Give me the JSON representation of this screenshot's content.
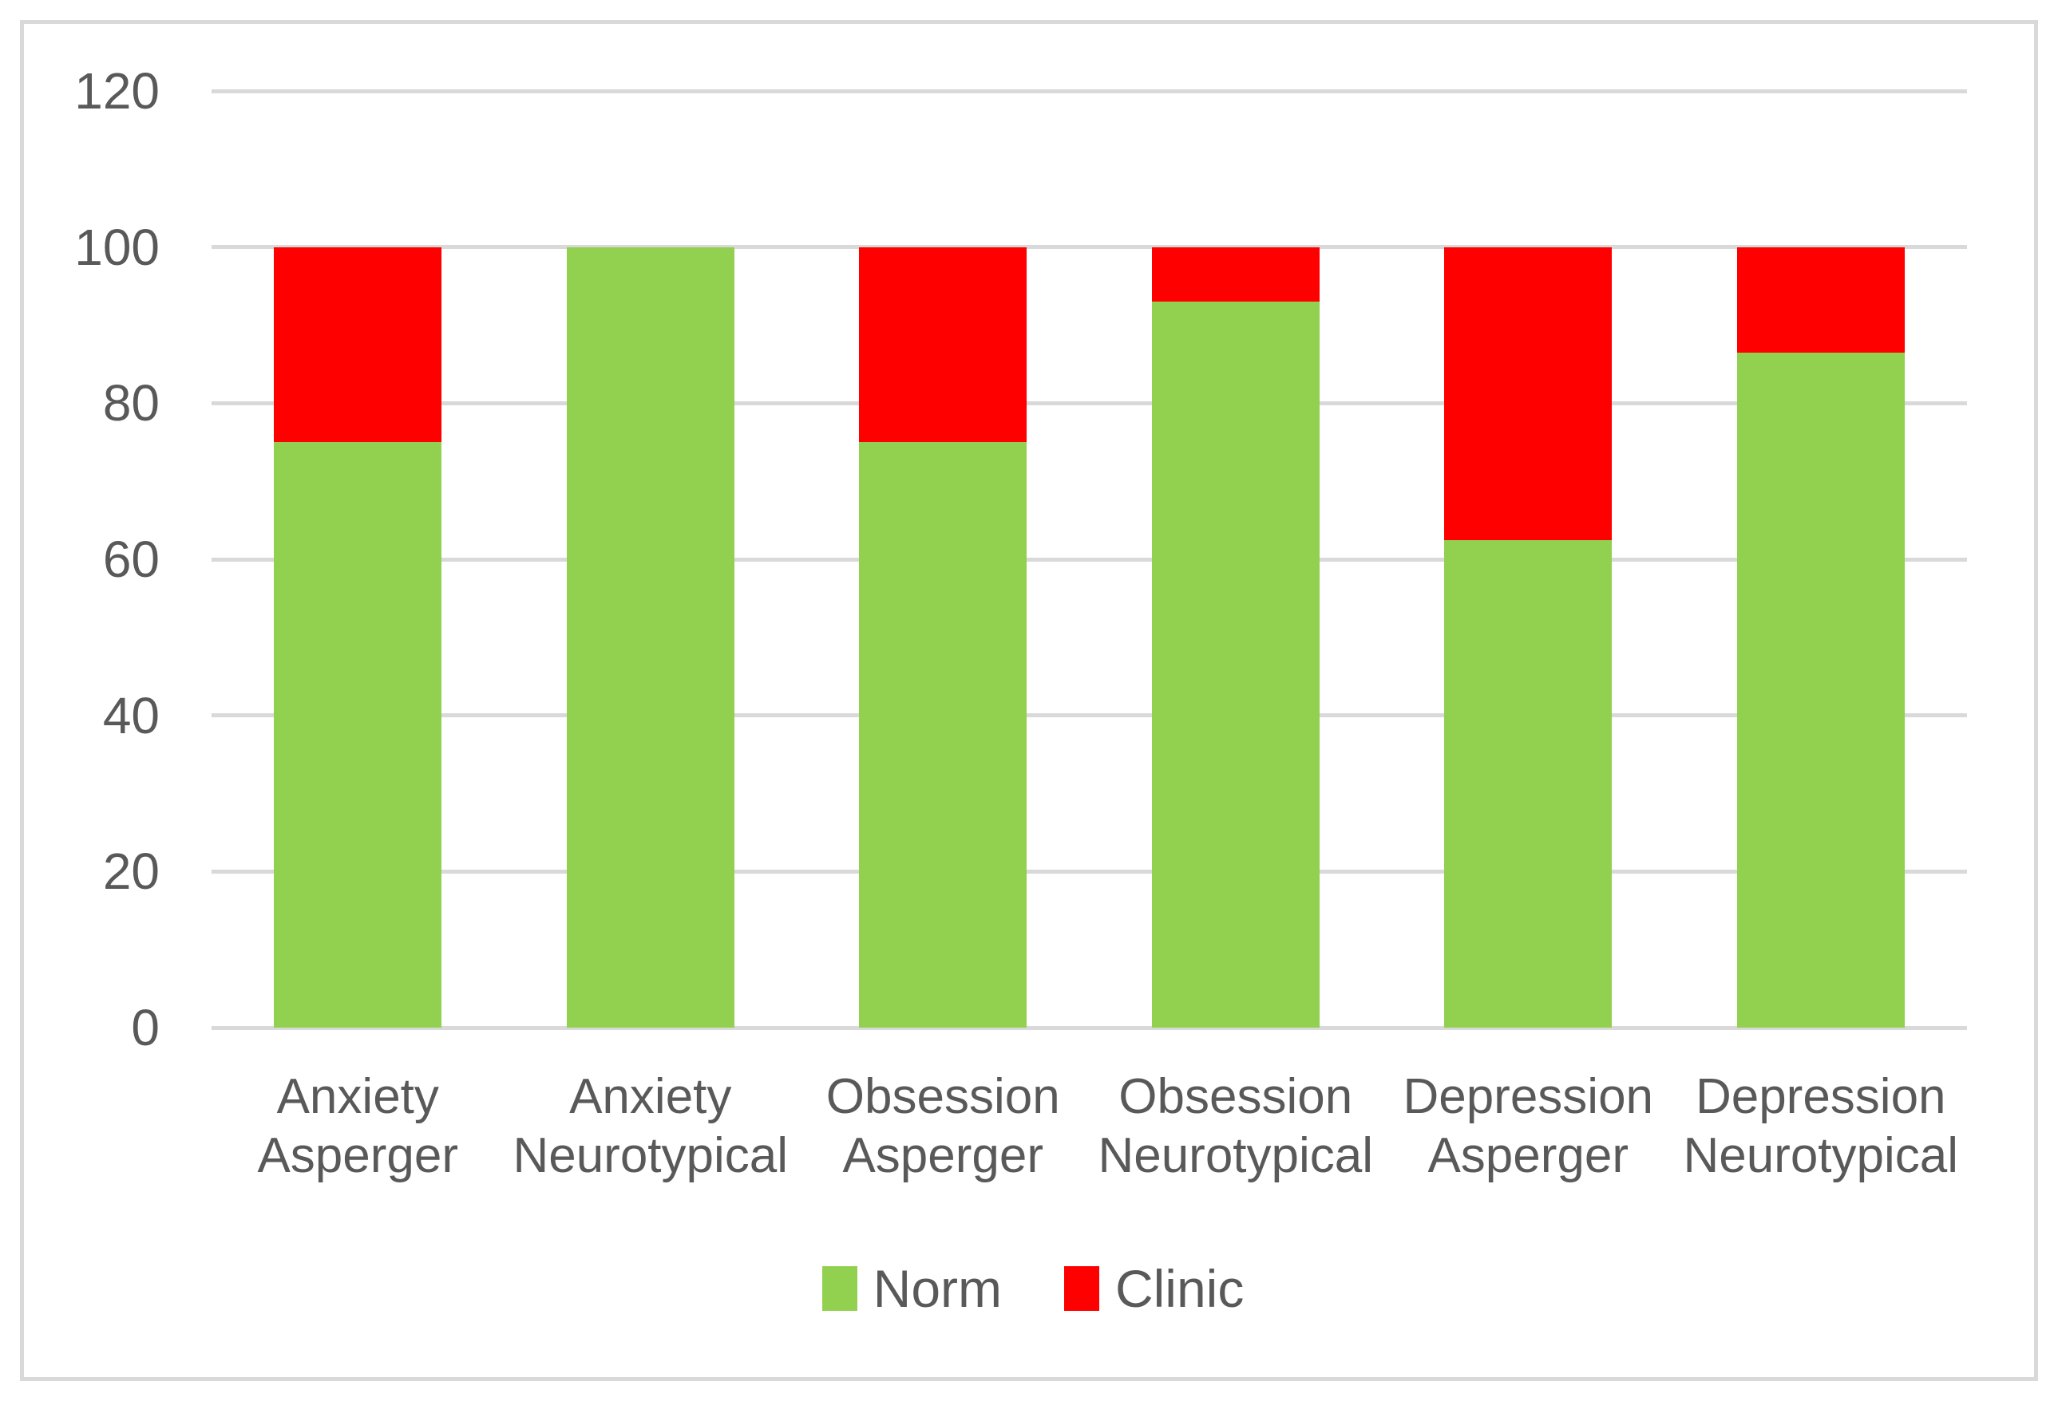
{
  "chart_data": {
    "type": "bar",
    "stacked": true,
    "title": "",
    "xlabel": "",
    "ylabel": "",
    "categories": [
      "Anxiety Asperger",
      "Anxiety Neurotypical",
      "Obsession Asperger",
      "Obsession Neurotypical",
      "Depression Asperger",
      "Depression Neurotypical"
    ],
    "series": [
      {
        "name": "Norm",
        "color": "#92D050",
        "values": [
          75,
          100,
          75,
          93,
          62.5,
          86.5
        ]
      },
      {
        "name": "Clinic",
        "color": "#FF0000",
        "values": [
          25,
          0,
          25,
          7,
          37.5,
          13.5
        ]
      }
    ],
    "ylim": [
      0,
      120
    ],
    "yticks": [
      0,
      20,
      40,
      60,
      80,
      100,
      120
    ],
    "grid": true,
    "legend_position": "bottom"
  },
  "colors": {
    "gridline": "#D9D9D9",
    "frame_border": "#D9D9D9",
    "axis_text": "#595959",
    "background": "#FFFFFF"
  }
}
